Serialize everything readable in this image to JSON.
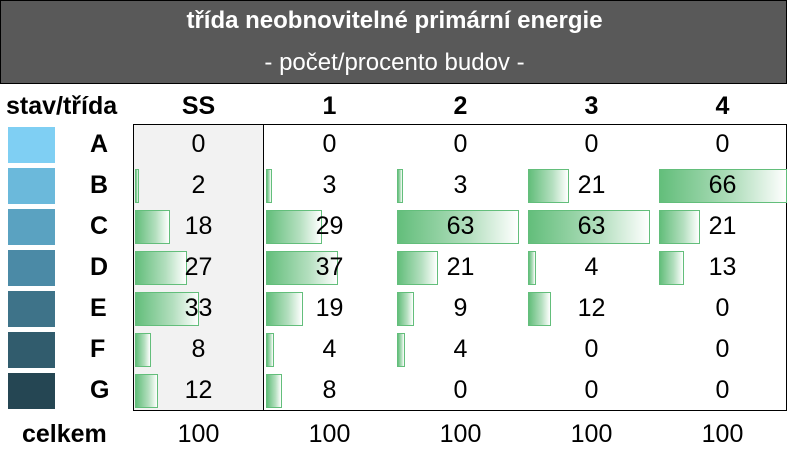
{
  "header": {
    "title": "třída neobnovitelné primární energie",
    "subtitle": "- počet/procento budov -"
  },
  "corner_label": "stav/třída",
  "total_label": "celkem",
  "swatch_colors": [
    "#7fcff3",
    "#6bb9db",
    "#5aa2c1",
    "#4b8aa6",
    "#3e7389",
    "#315c6d",
    "#254653"
  ],
  "bar_colors": {
    "start": "#63be7b",
    "end": "#ffffff"
  },
  "chart_data": {
    "type": "table",
    "title": "třída neobnovitelné primární energie",
    "subtitle": "- počet/procento budov -",
    "columns": [
      "SS",
      "1",
      "2",
      "3",
      "4"
    ],
    "rows": [
      "A",
      "B",
      "C",
      "D",
      "E",
      "F",
      "G"
    ],
    "values": [
      [
        0,
        0,
        0,
        0,
        0
      ],
      [
        2,
        3,
        3,
        21,
        66
      ],
      [
        18,
        29,
        63,
        63,
        21
      ],
      [
        27,
        37,
        21,
        4,
        13
      ],
      [
        33,
        19,
        9,
        12,
        0
      ],
      [
        8,
        4,
        4,
        0,
        0
      ],
      [
        12,
        8,
        0,
        0,
        0
      ]
    ],
    "totals": [
      100,
      100,
      100,
      100,
      100
    ],
    "data_bars": true,
    "data_bar_max": 66
  }
}
